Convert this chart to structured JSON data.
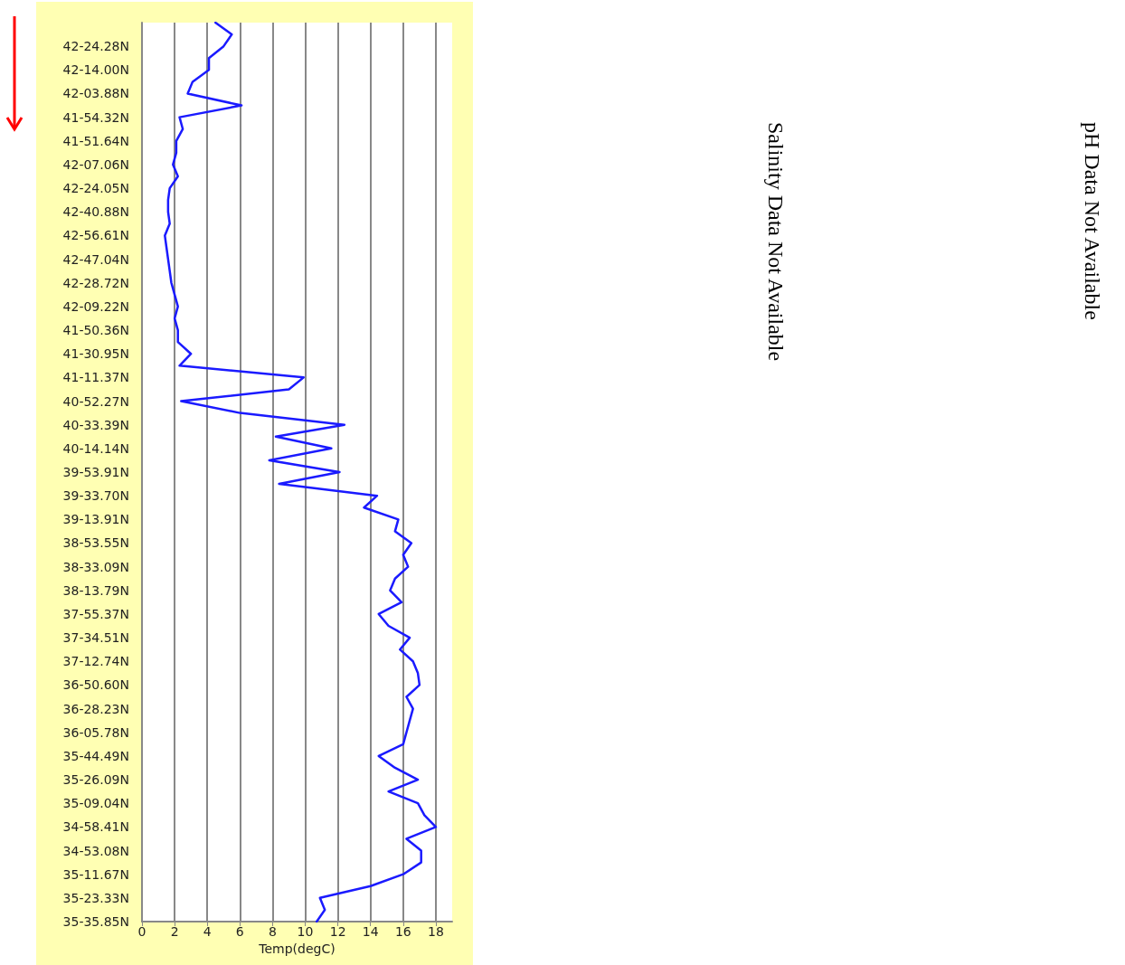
{
  "chart_data": {
    "type": "line",
    "orientation": "horizontal",
    "xlabel": "Temp(degC)",
    "color": "#1a1aff",
    "marker": "none",
    "grid": "x",
    "xlim": [
      0,
      19
    ],
    "xticks": [
      0,
      2,
      4,
      6,
      8,
      10,
      12,
      14,
      16,
      18
    ],
    "categories": [
      null,
      null,
      "42-24.28N",
      null,
      "42-14.00N",
      null,
      "42-03.88N",
      null,
      "41-54.32N",
      null,
      "41-51.64N",
      null,
      "42-07.06N",
      null,
      "42-24.05N",
      null,
      "42-40.88N",
      null,
      "42-56.61N",
      null,
      "42-47.04N",
      null,
      "42-28.72N",
      null,
      "42-09.22N",
      null,
      "41-50.36N",
      null,
      "41-30.95N",
      null,
      "41-11.37N",
      null,
      "40-52.27N",
      null,
      "40-33.39N",
      null,
      "40-14.14N",
      null,
      "39-53.91N",
      null,
      "39-33.70N",
      null,
      "39-13.91N",
      null,
      "38-53.55N",
      null,
      "38-33.09N",
      null,
      "38-13.79N",
      null,
      "37-55.37N",
      null,
      "37-34.51N",
      null,
      "37-12.74N",
      null,
      "36-50.60N",
      null,
      "36-28.23N",
      null,
      "36-05.78N",
      null,
      "35-44.49N",
      null,
      "35-26.09N",
      null,
      "35-09.04N",
      null,
      "34-58.41N",
      null,
      "34-53.08N",
      null,
      "35-11.67N",
      null,
      "35-23.33N",
      null,
      "35-35.85N"
    ],
    "values": [
      4.5,
      5.5,
      5.0,
      4.1,
      4.1,
      3.1,
      2.8,
      6.1,
      2.3,
      2.5,
      2.1,
      2.1,
      1.9,
      2.2,
      1.7,
      1.6,
      1.6,
      1.7,
      1.4,
      1.5,
      1.6,
      1.7,
      1.8,
      2.0,
      2.2,
      2.0,
      2.2,
      2.2,
      3.0,
      2.3,
      9.9,
      9.0,
      2.4,
      6.0,
      12.4,
      8.2,
      11.6,
      7.8,
      12.1,
      8.4,
      14.4,
      13.6,
      15.7,
      15.5,
      16.5,
      16.0,
      16.3,
      15.5,
      15.2,
      15.9,
      14.5,
      15.1,
      16.4,
      15.8,
      16.6,
      16.9,
      17.0,
      16.2,
      16.6,
      16.4,
      16.2,
      16.0,
      14.5,
      15.5,
      16.9,
      15.1,
      16.9,
      17.3,
      18.0,
      16.2,
      17.1,
      17.1,
      16.0,
      14.0,
      10.9,
      11.2,
      10.7
    ],
    "annotations": [
      "Salinity Data Not Available",
      "pH Data Not Available"
    ]
  }
}
